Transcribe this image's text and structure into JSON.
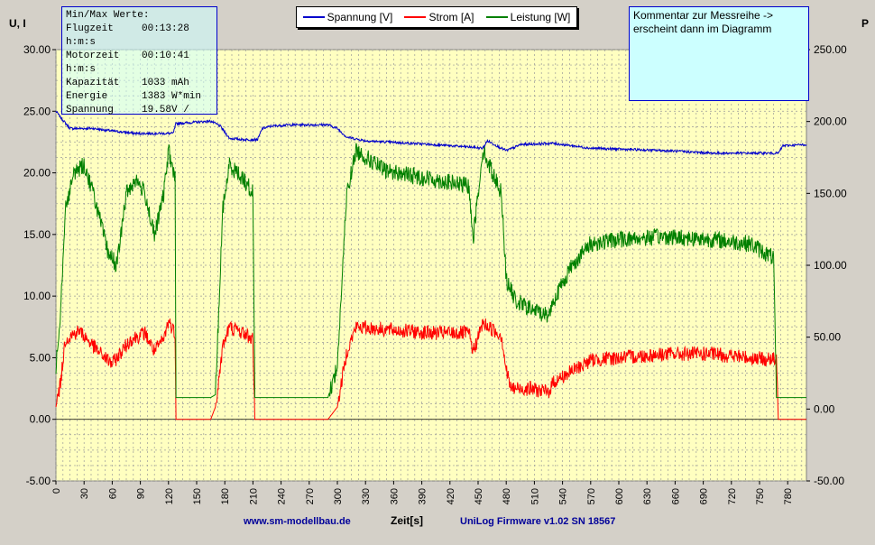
{
  "chart_data": {
    "type": "line",
    "y_left_label": "U, I",
    "y_right_label": "P",
    "xlabel": "Zeit[s]",
    "xlim": [
      0,
      800
    ],
    "ylim_left": [
      -5,
      30
    ],
    "ylim_right": [
      -50,
      250
    ],
    "x_ticks": [
      0,
      30,
      60,
      90,
      120,
      150,
      180,
      210,
      240,
      270,
      300,
      330,
      360,
      390,
      420,
      450,
      480,
      510,
      540,
      570,
      600,
      630,
      660,
      690,
      720,
      750,
      780
    ],
    "y_left_ticks": [
      "30.00",
      "25.00",
      "20.00",
      "15.00",
      "10.00",
      "5.00",
      "0.00",
      "-5.00"
    ],
    "y_right_ticks": [
      "250.00",
      "200.00",
      "150.00",
      "100.00",
      "50.00",
      "0.00",
      "-50.00"
    ],
    "series": [
      {
        "name": "Spannung [V]",
        "axis": "left",
        "color": "#0000cc",
        "noise": 0.1,
        "points": [
          [
            0,
            25.0
          ],
          [
            5,
            24.5
          ],
          [
            15,
            23.6
          ],
          [
            40,
            23.6
          ],
          [
            60,
            23.4
          ],
          [
            85,
            23.2
          ],
          [
            110,
            23.2
          ],
          [
            125,
            23.2
          ],
          [
            128,
            24.0
          ],
          [
            165,
            24.2
          ],
          [
            175,
            23.8
          ],
          [
            185,
            22.8
          ],
          [
            200,
            22.7
          ],
          [
            215,
            22.7
          ],
          [
            220,
            23.6
          ],
          [
            230,
            23.8
          ],
          [
            250,
            23.9
          ],
          [
            290,
            23.9
          ],
          [
            300,
            23.6
          ],
          [
            310,
            22.9
          ],
          [
            330,
            22.6
          ],
          [
            400,
            22.3
          ],
          [
            440,
            22.1
          ],
          [
            455,
            22.0
          ],
          [
            460,
            22.6
          ],
          [
            470,
            22.2
          ],
          [
            480,
            21.8
          ],
          [
            490,
            22.1
          ],
          [
            495,
            22.3
          ],
          [
            530,
            22.4
          ],
          [
            570,
            22.0
          ],
          [
            650,
            21.8
          ],
          [
            700,
            21.6
          ],
          [
            760,
            21.6
          ],
          [
            770,
            21.6
          ],
          [
            775,
            22.2
          ],
          [
            800,
            22.3
          ]
        ]
      },
      {
        "name": "Strom [A]",
        "axis": "left",
        "color": "#ff0000",
        "noise": 0.6,
        "points": [
          [
            0,
            1.0
          ],
          [
            5,
            3.0
          ],
          [
            10,
            6.5
          ],
          [
            25,
            7.2
          ],
          [
            45,
            5.5
          ],
          [
            60,
            4.5
          ],
          [
            80,
            6.5
          ],
          [
            95,
            7.0
          ],
          [
            105,
            5.5
          ],
          [
            115,
            6.5
          ],
          [
            120,
            8.0
          ],
          [
            127,
            7.0
          ],
          [
            128,
            0.0
          ],
          [
            165,
            0.0
          ],
          [
            170,
            1.0
          ],
          [
            178,
            6.0
          ],
          [
            185,
            7.5
          ],
          [
            200,
            7.0
          ],
          [
            210,
            6.5
          ],
          [
            212,
            0.0
          ],
          [
            290,
            0.0
          ],
          [
            300,
            1.0
          ],
          [
            310,
            5.5
          ],
          [
            320,
            7.5
          ],
          [
            350,
            7.3
          ],
          [
            400,
            7.0
          ],
          [
            440,
            7.0
          ],
          [
            445,
            5.5
          ],
          [
            455,
            7.8
          ],
          [
            465,
            7.3
          ],
          [
            475,
            6.8
          ],
          [
            480,
            4.0
          ],
          [
            485,
            2.5
          ],
          [
            505,
            2.5
          ],
          [
            525,
            2.2
          ],
          [
            530,
            3.0
          ],
          [
            570,
            4.8
          ],
          [
            600,
            5.0
          ],
          [
            650,
            5.3
          ],
          [
            700,
            5.3
          ],
          [
            740,
            5.0
          ],
          [
            768,
            4.8
          ],
          [
            770,
            0.0
          ],
          [
            800,
            0.0
          ]
        ]
      },
      {
        "name": "Leistung [W]",
        "axis": "right",
        "color": "#008000",
        "noise": 6.0,
        "points": [
          [
            0,
            30
          ],
          [
            5,
            70
          ],
          [
            10,
            140
          ],
          [
            20,
            165
          ],
          [
            30,
            170
          ],
          [
            40,
            150
          ],
          [
            55,
            110
          ],
          [
            65,
            100
          ],
          [
            75,
            150
          ],
          [
            85,
            160
          ],
          [
            95,
            150
          ],
          [
            105,
            120
          ],
          [
            115,
            150
          ],
          [
            120,
            180
          ],
          [
            127,
            160
          ],
          [
            128,
            8
          ],
          [
            165,
            8
          ],
          [
            170,
            10
          ],
          [
            178,
            140
          ],
          [
            185,
            170
          ],
          [
            200,
            160
          ],
          [
            210,
            150
          ],
          [
            212,
            8
          ],
          [
            290,
            8
          ],
          [
            300,
            30
          ],
          [
            310,
            150
          ],
          [
            320,
            180
          ],
          [
            350,
            166
          ],
          [
            400,
            160
          ],
          [
            440,
            155
          ],
          [
            445,
            120
          ],
          [
            455,
            180
          ],
          [
            465,
            165
          ],
          [
            475,
            150
          ],
          [
            480,
            90
          ],
          [
            490,
            75
          ],
          [
            505,
            70
          ],
          [
            525,
            65
          ],
          [
            530,
            75
          ],
          [
            550,
            100
          ],
          [
            570,
            115
          ],
          [
            600,
            118
          ],
          [
            650,
            120
          ],
          [
            700,
            118
          ],
          [
            740,
            115
          ],
          [
            765,
            105
          ],
          [
            768,
            8
          ],
          [
            800,
            8
          ]
        ]
      }
    ],
    "legend": [
      "Spannung [V]",
      "Strom [A]",
      "Leistung [W]"
    ],
    "minmax": {
      "title": "Min/Max Werte:",
      "rows": [
        {
          "k": "Flugzeit",
          "v": "00:13:28"
        },
        {
          "k": "h:m:s",
          "v": ""
        },
        {
          "k": "Motorzeit",
          "v": "00:10:41"
        },
        {
          "k": "h:m:s",
          "v": ""
        },
        {
          "k": "Kapazität",
          "v": "1033 mAh"
        },
        {
          "k": "Energie",
          "v": "1383 W*min"
        },
        {
          "k": "Spannung",
          "v": "19.58V /"
        }
      ]
    },
    "comment": "Kommentar zur Messreihe -> erscheint dann im Diagramm",
    "footer_left": "www.sm-modellbau.de",
    "footer_right": "UniLog Firmware v1.02 SN 18567"
  }
}
